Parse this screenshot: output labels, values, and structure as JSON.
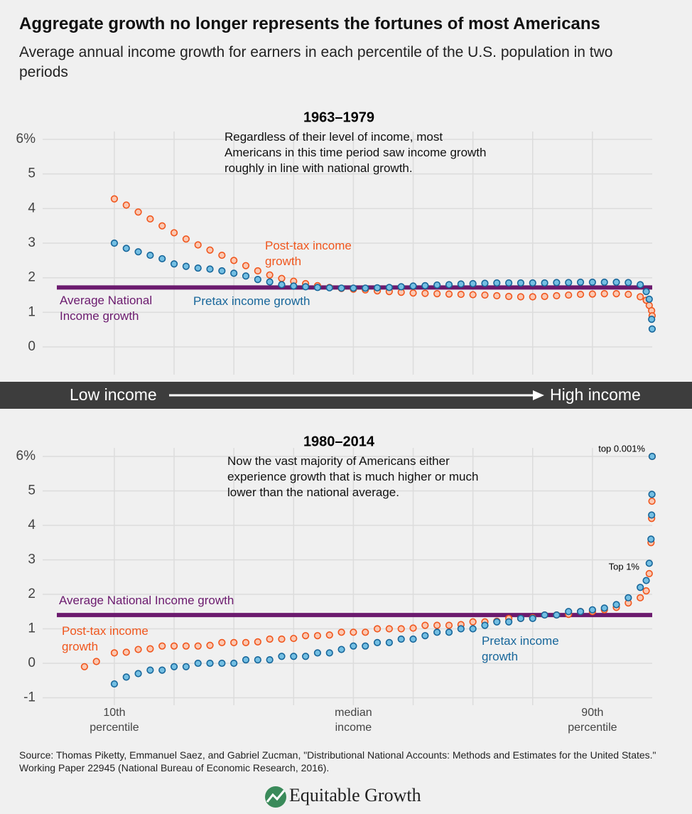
{
  "title": "Aggregate growth no longer represents the fortunes of most Americans",
  "subtitle": "Average annual income growth for earners in each percentile of the U.S. population in two periods",
  "band": {
    "low": "Low income",
    "high": "High income"
  },
  "source": "Source: Thomas Piketty, Emmanuel Saez, and Gabriel Zucman, \"Distributional National Accounts: Methods and Estimates for the United States.\" Working Paper 22945 (National Bureau of Economic Research, 2016).",
  "logo": "Equitable Growth",
  "chart_data": [
    {
      "type": "scatter",
      "title": "1963–1979",
      "note": "Regardless of their level of income, most Americans in this time period saw income growth roughly in line with national growth.",
      "xlim": [
        -2,
        100
      ],
      "xgrid": [
        10,
        20,
        30,
        40,
        50,
        60,
        70,
        80,
        90
      ],
      "ylim": [
        -0.8,
        6
      ],
      "yticks": [
        0,
        1,
        2,
        3,
        4,
        5,
        {
          "value": 6,
          "label": "6%"
        }
      ],
      "x": [
        10,
        12,
        14,
        16,
        18,
        20,
        22,
        24,
        26,
        28,
        30,
        32,
        34,
        36,
        38,
        40,
        42,
        44,
        46,
        48,
        50,
        52,
        54,
        56,
        58,
        60,
        62,
        64,
        66,
        68,
        70,
        72,
        74,
        76,
        78,
        80,
        82,
        84,
        86,
        88,
        90,
        92,
        94,
        96,
        98,
        99,
        99.5,
        99.9,
        99.99
      ],
      "reference": {
        "name": "Average National Income growth",
        "value": 1.72,
        "color": "#6b1a6e"
      },
      "series": [
        {
          "name": "Post-tax income growth",
          "color": "#f0561d",
          "fill": "#fbc8b2",
          "values": [
            4.28,
            4.1,
            3.9,
            3.7,
            3.5,
            3.3,
            3.12,
            2.95,
            2.8,
            2.65,
            2.5,
            2.35,
            2.2,
            2.08,
            1.98,
            1.9,
            1.83,
            1.77,
            1.72,
            1.69,
            1.67,
            1.65,
            1.62,
            1.6,
            1.58,
            1.56,
            1.55,
            1.54,
            1.53,
            1.52,
            1.51,
            1.5,
            1.48,
            1.46,
            1.45,
            1.45,
            1.46,
            1.48,
            1.5,
            1.52,
            1.53,
            1.54,
            1.54,
            1.52,
            1.45,
            1.35,
            1.2,
            1.05,
            0.9
          ]
        },
        {
          "name": "Pretax income growth",
          "color": "#17669a",
          "fill": "#74bfe3",
          "values": [
            3.0,
            2.85,
            2.75,
            2.65,
            2.55,
            2.4,
            2.33,
            2.28,
            2.25,
            2.2,
            2.13,
            2.05,
            1.95,
            1.88,
            1.8,
            1.76,
            1.74,
            1.72,
            1.71,
            1.7,
            1.7,
            1.7,
            1.71,
            1.72,
            1.74,
            1.76,
            1.77,
            1.79,
            1.8,
            1.82,
            1.83,
            1.84,
            1.85,
            1.85,
            1.85,
            1.85,
            1.85,
            1.86,
            1.86,
            1.87,
            1.87,
            1.87,
            1.87,
            1.86,
            1.8,
            1.6,
            1.38,
            0.8,
            0.52
          ]
        }
      ]
    },
    {
      "type": "scatter",
      "title": "1980–2014",
      "note": "Now the vast majority of Americans either experience growth that is much higher or much lower than the national average.",
      "xlim": [
        -2,
        100
      ],
      "xgrid": [
        10,
        20,
        30,
        40,
        50,
        60,
        70,
        80,
        90
      ],
      "xticks": [
        {
          "value": 10,
          "label": "10th percentile"
        },
        {
          "value": 50,
          "label": "median income"
        },
        {
          "value": 90,
          "label": "90th percentile"
        }
      ],
      "ylim": [
        -1.3,
        6
      ],
      "yticks": [
        -1,
        0,
        1,
        2,
        3,
        4,
        5,
        {
          "value": 6,
          "label": "6%"
        }
      ],
      "x": [
        5,
        7,
        10,
        12,
        14,
        16,
        18,
        20,
        22,
        24,
        26,
        28,
        30,
        32,
        34,
        36,
        38,
        40,
        42,
        44,
        46,
        48,
        50,
        52,
        54,
        56,
        58,
        60,
        62,
        64,
        66,
        68,
        70,
        72,
        74,
        76,
        78,
        80,
        82,
        84,
        86,
        88,
        90,
        92,
        94,
        96,
        98,
        99,
        99.5,
        99.8,
        99.9,
        99.95,
        99.99
      ],
      "reference": {
        "name": "Average National Income growth",
        "value": 1.4,
        "color": "#6b1a6e"
      },
      "annotations": [
        "top 0.001%",
        "Top 1%"
      ],
      "series": [
        {
          "name": "Post-tax income growth",
          "color": "#f0561d",
          "fill": "#fbc8b2",
          "values": [
            -0.1,
            0.05,
            0.3,
            0.32,
            0.4,
            0.42,
            0.5,
            0.5,
            0.5,
            0.5,
            0.52,
            0.6,
            0.6,
            0.6,
            0.62,
            0.7,
            0.7,
            0.72,
            0.8,
            0.8,
            0.82,
            0.9,
            0.9,
            0.9,
            1.0,
            1.0,
            1.0,
            1.02,
            1.1,
            1.1,
            1.1,
            1.12,
            1.2,
            1.2,
            1.22,
            1.3,
            1.3,
            1.32,
            1.4,
            1.4,
            1.42,
            1.5,
            1.5,
            1.55,
            1.62,
            1.75,
            1.9,
            2.1,
            2.6,
            3.5,
            4.2,
            4.7,
            6.0
          ]
        },
        {
          "name": "Pretax income growth",
          "color": "#17669a",
          "fill": "#74bfe3",
          "values": [
            null,
            null,
            -0.6,
            -0.4,
            -0.3,
            -0.2,
            -0.2,
            -0.1,
            -0.1,
            0.0,
            0.0,
            0.0,
            0.0,
            0.1,
            0.1,
            0.1,
            0.2,
            0.2,
            0.2,
            0.3,
            0.3,
            0.4,
            0.5,
            0.5,
            0.6,
            0.6,
            0.7,
            0.7,
            0.8,
            0.9,
            0.9,
            1.0,
            1.0,
            1.1,
            1.2,
            1.2,
            1.3,
            1.3,
            1.4,
            1.4,
            1.5,
            1.5,
            1.55,
            1.6,
            1.7,
            1.9,
            2.2,
            2.4,
            2.9,
            3.6,
            4.3,
            4.9,
            6.0
          ]
        }
      ]
    }
  ]
}
